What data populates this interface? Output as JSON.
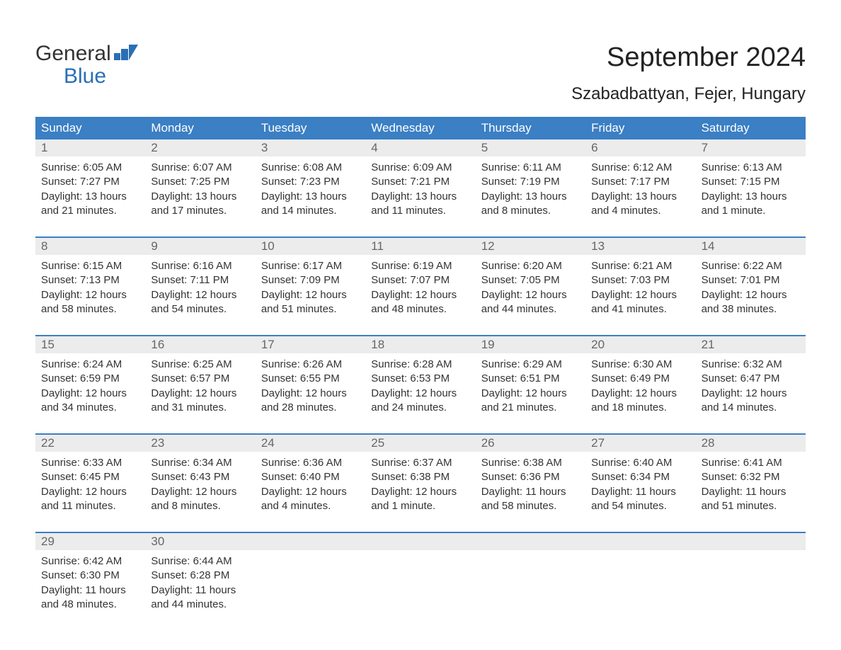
{
  "logo": {
    "top": "General",
    "bottom": "Blue"
  },
  "title": "September 2024",
  "location": "Szabadbattyan, Fejer, Hungary",
  "colors": {
    "header_bg": "#3b7fc4",
    "header_text": "#ffffff",
    "week_border": "#3b7fc4",
    "daynum_bg": "#ececec",
    "daynum_text": "#666666",
    "body_text": "#333333",
    "logo_blue": "#2a6fb5",
    "background": "#ffffff"
  },
  "typography": {
    "title_fontsize": 38,
    "location_fontsize": 24,
    "day_header_fontsize": 17,
    "daynum_fontsize": 17,
    "cell_fontsize": 15,
    "logo_fontsize": 30
  },
  "day_names": [
    "Sunday",
    "Monday",
    "Tuesday",
    "Wednesday",
    "Thursday",
    "Friday",
    "Saturday"
  ],
  "weeks": [
    [
      {
        "n": "1",
        "sr": "Sunrise: 6:05 AM",
        "ss": "Sunset: 7:27 PM",
        "d1": "Daylight: 13 hours",
        "d2": "and 21 minutes."
      },
      {
        "n": "2",
        "sr": "Sunrise: 6:07 AM",
        "ss": "Sunset: 7:25 PM",
        "d1": "Daylight: 13 hours",
        "d2": "and 17 minutes."
      },
      {
        "n": "3",
        "sr": "Sunrise: 6:08 AM",
        "ss": "Sunset: 7:23 PM",
        "d1": "Daylight: 13 hours",
        "d2": "and 14 minutes."
      },
      {
        "n": "4",
        "sr": "Sunrise: 6:09 AM",
        "ss": "Sunset: 7:21 PM",
        "d1": "Daylight: 13 hours",
        "d2": "and 11 minutes."
      },
      {
        "n": "5",
        "sr": "Sunrise: 6:11 AM",
        "ss": "Sunset: 7:19 PM",
        "d1": "Daylight: 13 hours",
        "d2": "and 8 minutes."
      },
      {
        "n": "6",
        "sr": "Sunrise: 6:12 AM",
        "ss": "Sunset: 7:17 PM",
        "d1": "Daylight: 13 hours",
        "d2": "and 4 minutes."
      },
      {
        "n": "7",
        "sr": "Sunrise: 6:13 AM",
        "ss": "Sunset: 7:15 PM",
        "d1": "Daylight: 13 hours",
        "d2": "and 1 minute."
      }
    ],
    [
      {
        "n": "8",
        "sr": "Sunrise: 6:15 AM",
        "ss": "Sunset: 7:13 PM",
        "d1": "Daylight: 12 hours",
        "d2": "and 58 minutes."
      },
      {
        "n": "9",
        "sr": "Sunrise: 6:16 AM",
        "ss": "Sunset: 7:11 PM",
        "d1": "Daylight: 12 hours",
        "d2": "and 54 minutes."
      },
      {
        "n": "10",
        "sr": "Sunrise: 6:17 AM",
        "ss": "Sunset: 7:09 PM",
        "d1": "Daylight: 12 hours",
        "d2": "and 51 minutes."
      },
      {
        "n": "11",
        "sr": "Sunrise: 6:19 AM",
        "ss": "Sunset: 7:07 PM",
        "d1": "Daylight: 12 hours",
        "d2": "and 48 minutes."
      },
      {
        "n": "12",
        "sr": "Sunrise: 6:20 AM",
        "ss": "Sunset: 7:05 PM",
        "d1": "Daylight: 12 hours",
        "d2": "and 44 minutes."
      },
      {
        "n": "13",
        "sr": "Sunrise: 6:21 AM",
        "ss": "Sunset: 7:03 PM",
        "d1": "Daylight: 12 hours",
        "d2": "and 41 minutes."
      },
      {
        "n": "14",
        "sr": "Sunrise: 6:22 AM",
        "ss": "Sunset: 7:01 PM",
        "d1": "Daylight: 12 hours",
        "d2": "and 38 minutes."
      }
    ],
    [
      {
        "n": "15",
        "sr": "Sunrise: 6:24 AM",
        "ss": "Sunset: 6:59 PM",
        "d1": "Daylight: 12 hours",
        "d2": "and 34 minutes."
      },
      {
        "n": "16",
        "sr": "Sunrise: 6:25 AM",
        "ss": "Sunset: 6:57 PM",
        "d1": "Daylight: 12 hours",
        "d2": "and 31 minutes."
      },
      {
        "n": "17",
        "sr": "Sunrise: 6:26 AM",
        "ss": "Sunset: 6:55 PM",
        "d1": "Daylight: 12 hours",
        "d2": "and 28 minutes."
      },
      {
        "n": "18",
        "sr": "Sunrise: 6:28 AM",
        "ss": "Sunset: 6:53 PM",
        "d1": "Daylight: 12 hours",
        "d2": "and 24 minutes."
      },
      {
        "n": "19",
        "sr": "Sunrise: 6:29 AM",
        "ss": "Sunset: 6:51 PM",
        "d1": "Daylight: 12 hours",
        "d2": "and 21 minutes."
      },
      {
        "n": "20",
        "sr": "Sunrise: 6:30 AM",
        "ss": "Sunset: 6:49 PM",
        "d1": "Daylight: 12 hours",
        "d2": "and 18 minutes."
      },
      {
        "n": "21",
        "sr": "Sunrise: 6:32 AM",
        "ss": "Sunset: 6:47 PM",
        "d1": "Daylight: 12 hours",
        "d2": "and 14 minutes."
      }
    ],
    [
      {
        "n": "22",
        "sr": "Sunrise: 6:33 AM",
        "ss": "Sunset: 6:45 PM",
        "d1": "Daylight: 12 hours",
        "d2": "and 11 minutes."
      },
      {
        "n": "23",
        "sr": "Sunrise: 6:34 AM",
        "ss": "Sunset: 6:43 PM",
        "d1": "Daylight: 12 hours",
        "d2": "and 8 minutes."
      },
      {
        "n": "24",
        "sr": "Sunrise: 6:36 AM",
        "ss": "Sunset: 6:40 PM",
        "d1": "Daylight: 12 hours",
        "d2": "and 4 minutes."
      },
      {
        "n": "25",
        "sr": "Sunrise: 6:37 AM",
        "ss": "Sunset: 6:38 PM",
        "d1": "Daylight: 12 hours",
        "d2": "and 1 minute."
      },
      {
        "n": "26",
        "sr": "Sunrise: 6:38 AM",
        "ss": "Sunset: 6:36 PM",
        "d1": "Daylight: 11 hours",
        "d2": "and 58 minutes."
      },
      {
        "n": "27",
        "sr": "Sunrise: 6:40 AM",
        "ss": "Sunset: 6:34 PM",
        "d1": "Daylight: 11 hours",
        "d2": "and 54 minutes."
      },
      {
        "n": "28",
        "sr": "Sunrise: 6:41 AM",
        "ss": "Sunset: 6:32 PM",
        "d1": "Daylight: 11 hours",
        "d2": "and 51 minutes."
      }
    ],
    [
      {
        "n": "29",
        "sr": "Sunrise: 6:42 AM",
        "ss": "Sunset: 6:30 PM",
        "d1": "Daylight: 11 hours",
        "d2": "and 48 minutes."
      },
      {
        "n": "30",
        "sr": "Sunrise: 6:44 AM",
        "ss": "Sunset: 6:28 PM",
        "d1": "Daylight: 11 hours",
        "d2": "and 44 minutes."
      },
      null,
      null,
      null,
      null,
      null
    ]
  ]
}
